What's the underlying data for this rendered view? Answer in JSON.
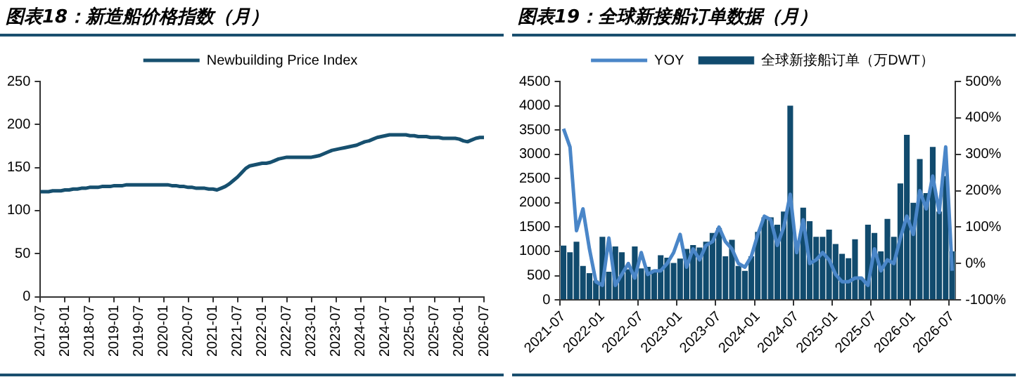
{
  "chart_data": [
    {
      "type": "line",
      "title": "图表18：新造船价格指数（月）",
      "legend": "top",
      "grid": false,
      "marker": "none",
      "categories": [
        "2017-07",
        null,
        null,
        null,
        null,
        null,
        "2018-01",
        null,
        null,
        null,
        null,
        null,
        "2018-07",
        null,
        null,
        null,
        null,
        null,
        "2019-01",
        null,
        null,
        null,
        null,
        null,
        "2019-07",
        null,
        null,
        null,
        null,
        null,
        "2020-01",
        null,
        null,
        null,
        null,
        null,
        "2020-07",
        null,
        null,
        null,
        null,
        null,
        "2021-01",
        null,
        null,
        null,
        null,
        null,
        "2021-07",
        null,
        null,
        null,
        null,
        null,
        "2022-01",
        null,
        null,
        null,
        null,
        null,
        "2022-07",
        null,
        null,
        null,
        null,
        null,
        "2023-01",
        null,
        null,
        null,
        null,
        null,
        "2023-07",
        null,
        null,
        null,
        null,
        null,
        "2024-01",
        null,
        null,
        null,
        null,
        null,
        "2024-07",
        null,
        null,
        null,
        null,
        null,
        "2025-01",
        null,
        null,
        null,
        null,
        null,
        "2025-07",
        null,
        null,
        null,
        null,
        null,
        "2026-01",
        null,
        null,
        null,
        null,
        null,
        "2026-07"
      ],
      "ylim": [
        0,
        250
      ],
      "yticks": [
        0,
        50,
        100,
        150,
        200,
        250
      ],
      "series": [
        {
          "name": "Newbuilding Price Index",
          "color": "#17506f",
          "values": [
            122,
            122,
            122,
            123,
            123,
            123,
            124,
            124,
            125,
            125,
            126,
            126,
            127,
            127,
            127,
            128,
            128,
            128,
            129,
            129,
            129,
            130,
            130,
            130,
            130,
            130,
            130,
            130,
            130,
            130,
            130,
            130,
            129,
            129,
            128,
            128,
            127,
            127,
            126,
            126,
            126,
            125,
            125,
            124,
            126,
            128,
            131,
            135,
            139,
            144,
            149,
            152,
            153,
            154,
            155,
            155,
            156,
            158,
            160,
            161,
            162,
            162,
            162,
            162,
            162,
            162,
            162,
            163,
            164,
            166,
            168,
            170,
            171,
            172,
            173,
            174,
            175,
            176,
            178,
            180,
            181,
            183,
            185,
            186,
            187,
            188,
            188,
            188,
            188,
            188,
            187,
            187,
            186,
            186,
            186,
            185,
            185,
            185,
            184,
            184,
            184,
            184,
            183,
            181,
            180,
            182,
            184,
            185,
            185
          ]
        }
      ]
    },
    {
      "type": "bar",
      "title": "图表19：全球新接船订单数据（月）",
      "legend": "top",
      "grid": false,
      "marker": "none",
      "categories": [
        "2021-07",
        null,
        null,
        null,
        null,
        null,
        "2022-01",
        null,
        null,
        null,
        null,
        null,
        "2022-07",
        null,
        null,
        null,
        null,
        null,
        "2023-01",
        null,
        null,
        null,
        null,
        null,
        "2023-07",
        null,
        null,
        null,
        null,
        null,
        "2024-01",
        null,
        null,
        null,
        null,
        null,
        "2024-07",
        null,
        null,
        null,
        null,
        null,
        "2025-01",
        null,
        null,
        null,
        null,
        null,
        "2025-07",
        null,
        null,
        null,
        null,
        null,
        "2026-01",
        null,
        null,
        null,
        null,
        null,
        "2026-07"
      ],
      "ylim": [
        0,
        4500
      ],
      "yticks": [
        0,
        500,
        1000,
        1500,
        2000,
        2500,
        3000,
        3500,
        4000,
        4500
      ],
      "y2lim": [
        -100,
        500
      ],
      "y2ticks": [
        {
          "value": -100,
          "label": "-100%"
        },
        {
          "value": 0,
          "label": "0%"
        },
        {
          "value": 100,
          "label": "100%"
        },
        {
          "value": 200,
          "label": "200%"
        },
        {
          "value": 300,
          "label": "300%"
        },
        {
          "value": 400,
          "label": "400%"
        },
        {
          "value": 500,
          "label": "500%"
        }
      ],
      "series": [
        {
          "name": "全球新接船订单（万DWT）",
          "type": "bar",
          "color": "#114b6e",
          "values": [
            1120,
            980,
            1200,
            700,
            550,
            400,
            1300,
            580,
            1100,
            980,
            630,
            1100,
            650,
            680,
            620,
            920,
            870,
            760,
            850,
            1050,
            1130,
            1080,
            1200,
            1380,
            1480,
            900,
            1240,
            700,
            600,
            900,
            1400,
            1700,
            1700,
            1550,
            1820,
            4000,
            1200,
            1900,
            1620,
            1300,
            1300,
            1450,
            1150,
            950,
            860,
            1250,
            420,
            1550,
            1380,
            1000,
            1670,
            1300,
            2400,
            3400,
            2000,
            2900,
            2200,
            3150,
            1820,
            2550,
            1000
          ]
        },
        {
          "name": "YOY",
          "type": "line",
          "axis": "y2",
          "color": "#4a86c8",
          "values": [
            370,
            320,
            90,
            150,
            40,
            -50,
            -60,
            70,
            -60,
            -30,
            0,
            -40,
            30,
            -30,
            -20,
            -20,
            0,
            30,
            80,
            -10,
            40,
            10,
            50,
            60,
            100,
            60,
            40,
            0,
            -10,
            20,
            80,
            130,
            120,
            50,
            100,
            190,
            30,
            120,
            0,
            10,
            30,
            10,
            -30,
            -50,
            -50,
            -40,
            -40,
            -60,
            40,
            -20,
            10,
            0,
            70,
            130,
            80,
            200,
            150,
            240,
            140,
            320,
            -20
          ]
        }
      ]
    }
  ]
}
